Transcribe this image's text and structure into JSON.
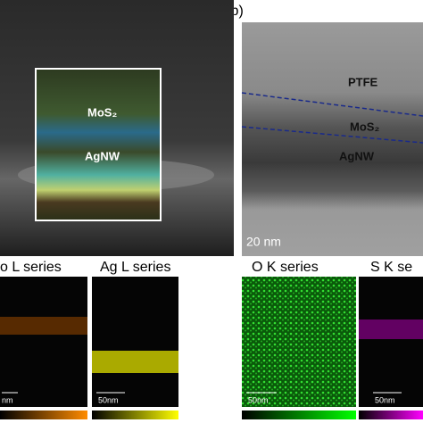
{
  "panel_label": "(b)",
  "sem": {
    "labels": [
      "MoS₂",
      "AgNW"
    ]
  },
  "tem": {
    "labels": [
      "PTFE",
      "MoS₂",
      "AgNW"
    ],
    "scale_bar": "20 nm"
  },
  "maps": [
    {
      "title": "o L series",
      "scale_bar": "nm"
    },
    {
      "title": "Ag L series",
      "scale_bar": "50nm"
    },
    {
      "title": "O K series",
      "scale_bar": "50nm"
    },
    {
      "title": "S K se",
      "scale_bar": "50nm"
    }
  ]
}
